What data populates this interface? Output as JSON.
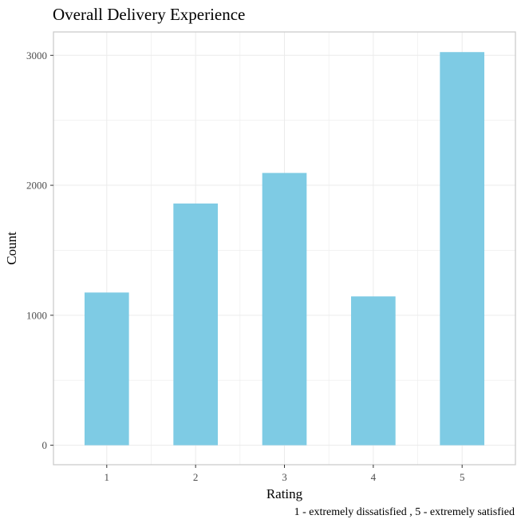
{
  "chart_data": {
    "type": "bar",
    "title": "Overall Delivery Experience",
    "caption": "1 - extremely dissatisfied , 5 - extremely satisfied",
    "xlabel": "Rating",
    "ylabel": "Count",
    "categories": [
      "1",
      "2",
      "3",
      "4",
      "5"
    ],
    "values": [
      1175,
      1860,
      2095,
      1145,
      3025
    ],
    "ylim": [
      -150,
      3180
    ],
    "yticks": [
      0,
      1000,
      2000,
      3000
    ],
    "ytick_labels": [
      "0",
      "1000",
      "2000",
      "3000"
    ],
    "grid": true,
    "legend": "none",
    "colors": {
      "bar": "#7ecbe4",
      "grid": "#ebebeb",
      "panel_border": "#c8c8c8"
    }
  }
}
